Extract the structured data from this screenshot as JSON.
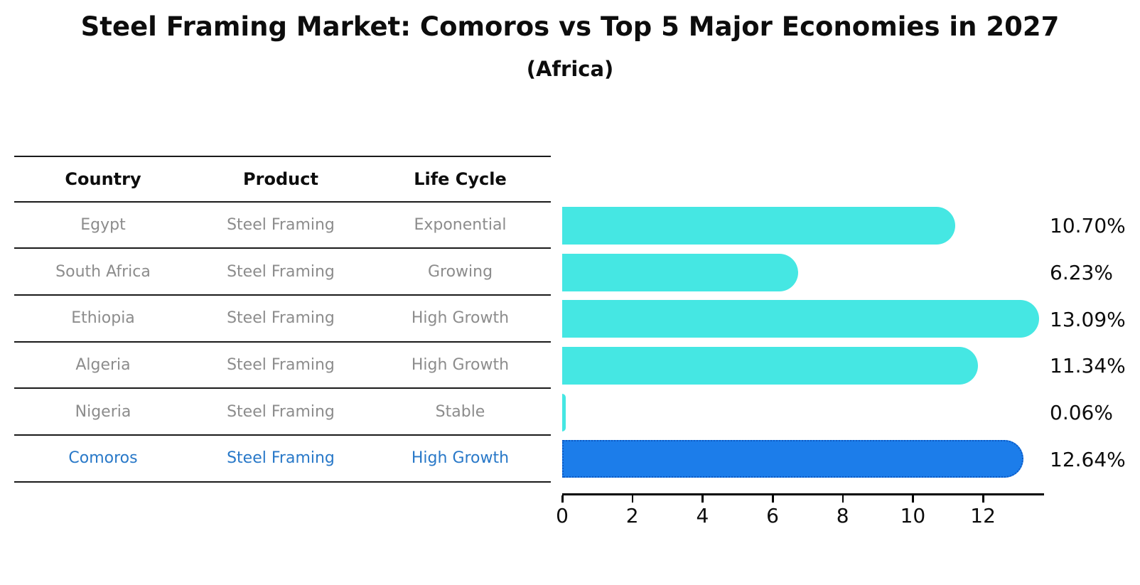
{
  "title": "Steel Framing Market: Comoros vs Top 5 Major Economies in 2027",
  "subtitle": "(Africa)",
  "table": {
    "headers": [
      "Country",
      "Product",
      "Life Cycle"
    ],
    "rows": [
      {
        "country": "Egypt",
        "product": "Steel Framing",
        "life_cycle": "Exponential",
        "highlight": false
      },
      {
        "country": "South Africa",
        "product": "Steel Framing",
        "life_cycle": "Growing",
        "highlight": false
      },
      {
        "country": "Ethiopia",
        "product": "Steel Framing",
        "life_cycle": "High Growth",
        "highlight": false
      },
      {
        "country": "Algeria",
        "product": "Steel Framing",
        "life_cycle": "High Growth",
        "highlight": false
      },
      {
        "country": "Nigeria",
        "product": "Steel Framing",
        "life_cycle": "Stable",
        "highlight": false
      },
      {
        "country": "Comoros",
        "product": "Steel Framing",
        "life_cycle": "High Growth",
        "highlight": true
      }
    ]
  },
  "chart_data": {
    "type": "bar",
    "orientation": "horizontal",
    "title": "Steel Framing Market: Comoros vs Top 5 Major Economies in 2027",
    "subtitle": "(Africa)",
    "categories": [
      "Egypt",
      "South Africa",
      "Ethiopia",
      "Algeria",
      "Nigeria",
      "Comoros"
    ],
    "values": [
      10.7,
      6.23,
      13.09,
      11.34,
      0.06,
      12.64
    ],
    "value_labels": [
      "10.70%",
      "6.23%",
      "13.09%",
      "11.34%",
      "0.06%",
      "12.64%"
    ],
    "xlabel": "",
    "ylabel": "",
    "xlim": [
      0,
      13.7
    ],
    "xticks": [
      0,
      2,
      4,
      6,
      8,
      10,
      12
    ],
    "grid": false,
    "legend": false,
    "highlight_category": "Comoros",
    "colors": {
      "bar_default": "#45E7E3",
      "bar_highlight": "#1C7DEA",
      "bar_highlight_border": "#0D5AC4",
      "highlight_text": "#2878C8",
      "table_text": "#8c8c8c",
      "axis": "#000000"
    }
  }
}
